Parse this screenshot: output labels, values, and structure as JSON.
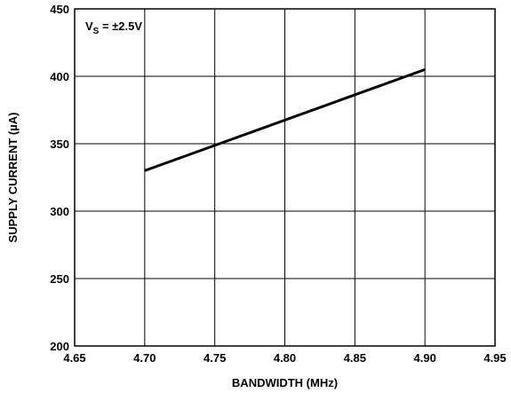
{
  "chart_data": {
    "type": "line",
    "title": "",
    "xlabel": "BANDWIDTH (MHz)",
    "ylabel": "SUPPLY CURRENT (µA)",
    "xlim": [
      4.65,
      4.95
    ],
    "ylim": [
      200,
      450
    ],
    "x_ticks": [
      "4.65",
      "4.70",
      "4.75",
      "4.80",
      "4.85",
      "4.90",
      "4.95"
    ],
    "y_ticks": [
      "200",
      "250",
      "300",
      "350",
      "400",
      "450"
    ],
    "grid": true,
    "annotation": {
      "main": "V",
      "sub": "S",
      "suffix": " = ±2.5V"
    },
    "series": [
      {
        "x": [
          4.7,
          4.9
        ],
        "y": [
          330,
          405
        ]
      }
    ],
    "colors": {
      "line": "#000000",
      "grid": "#000000",
      "frame": "#000000"
    }
  }
}
